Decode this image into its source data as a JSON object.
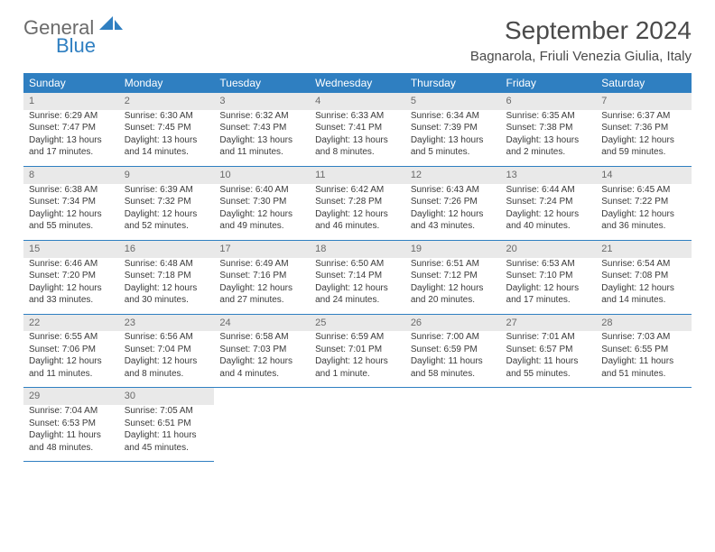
{
  "logo": {
    "text1": "General",
    "text2": "Blue"
  },
  "title": "September 2024",
  "location": "Bagnarola, Friuli Venezia Giulia, Italy",
  "header_bg": "#2f7fc1",
  "daynum_bg": "#e9e9e9",
  "border_color": "#2f7fc1",
  "weekdays": [
    "Sunday",
    "Monday",
    "Tuesday",
    "Wednesday",
    "Thursday",
    "Friday",
    "Saturday"
  ],
  "weeks": [
    [
      {
        "n": "1",
        "sr": "Sunrise: 6:29 AM",
        "ss": "Sunset: 7:47 PM",
        "dl": "Daylight: 13 hours and 17 minutes."
      },
      {
        "n": "2",
        "sr": "Sunrise: 6:30 AM",
        "ss": "Sunset: 7:45 PM",
        "dl": "Daylight: 13 hours and 14 minutes."
      },
      {
        "n": "3",
        "sr": "Sunrise: 6:32 AM",
        "ss": "Sunset: 7:43 PM",
        "dl": "Daylight: 13 hours and 11 minutes."
      },
      {
        "n": "4",
        "sr": "Sunrise: 6:33 AM",
        "ss": "Sunset: 7:41 PM",
        "dl": "Daylight: 13 hours and 8 minutes."
      },
      {
        "n": "5",
        "sr": "Sunrise: 6:34 AM",
        "ss": "Sunset: 7:39 PM",
        "dl": "Daylight: 13 hours and 5 minutes."
      },
      {
        "n": "6",
        "sr": "Sunrise: 6:35 AM",
        "ss": "Sunset: 7:38 PM",
        "dl": "Daylight: 13 hours and 2 minutes."
      },
      {
        "n": "7",
        "sr": "Sunrise: 6:37 AM",
        "ss": "Sunset: 7:36 PM",
        "dl": "Daylight: 12 hours and 59 minutes."
      }
    ],
    [
      {
        "n": "8",
        "sr": "Sunrise: 6:38 AM",
        "ss": "Sunset: 7:34 PM",
        "dl": "Daylight: 12 hours and 55 minutes."
      },
      {
        "n": "9",
        "sr": "Sunrise: 6:39 AM",
        "ss": "Sunset: 7:32 PM",
        "dl": "Daylight: 12 hours and 52 minutes."
      },
      {
        "n": "10",
        "sr": "Sunrise: 6:40 AM",
        "ss": "Sunset: 7:30 PM",
        "dl": "Daylight: 12 hours and 49 minutes."
      },
      {
        "n": "11",
        "sr": "Sunrise: 6:42 AM",
        "ss": "Sunset: 7:28 PM",
        "dl": "Daylight: 12 hours and 46 minutes."
      },
      {
        "n": "12",
        "sr": "Sunrise: 6:43 AM",
        "ss": "Sunset: 7:26 PM",
        "dl": "Daylight: 12 hours and 43 minutes."
      },
      {
        "n": "13",
        "sr": "Sunrise: 6:44 AM",
        "ss": "Sunset: 7:24 PM",
        "dl": "Daylight: 12 hours and 40 minutes."
      },
      {
        "n": "14",
        "sr": "Sunrise: 6:45 AM",
        "ss": "Sunset: 7:22 PM",
        "dl": "Daylight: 12 hours and 36 minutes."
      }
    ],
    [
      {
        "n": "15",
        "sr": "Sunrise: 6:46 AM",
        "ss": "Sunset: 7:20 PM",
        "dl": "Daylight: 12 hours and 33 minutes."
      },
      {
        "n": "16",
        "sr": "Sunrise: 6:48 AM",
        "ss": "Sunset: 7:18 PM",
        "dl": "Daylight: 12 hours and 30 minutes."
      },
      {
        "n": "17",
        "sr": "Sunrise: 6:49 AM",
        "ss": "Sunset: 7:16 PM",
        "dl": "Daylight: 12 hours and 27 minutes."
      },
      {
        "n": "18",
        "sr": "Sunrise: 6:50 AM",
        "ss": "Sunset: 7:14 PM",
        "dl": "Daylight: 12 hours and 24 minutes."
      },
      {
        "n": "19",
        "sr": "Sunrise: 6:51 AM",
        "ss": "Sunset: 7:12 PM",
        "dl": "Daylight: 12 hours and 20 minutes."
      },
      {
        "n": "20",
        "sr": "Sunrise: 6:53 AM",
        "ss": "Sunset: 7:10 PM",
        "dl": "Daylight: 12 hours and 17 minutes."
      },
      {
        "n": "21",
        "sr": "Sunrise: 6:54 AM",
        "ss": "Sunset: 7:08 PM",
        "dl": "Daylight: 12 hours and 14 minutes."
      }
    ],
    [
      {
        "n": "22",
        "sr": "Sunrise: 6:55 AM",
        "ss": "Sunset: 7:06 PM",
        "dl": "Daylight: 12 hours and 11 minutes."
      },
      {
        "n": "23",
        "sr": "Sunrise: 6:56 AM",
        "ss": "Sunset: 7:04 PM",
        "dl": "Daylight: 12 hours and 8 minutes."
      },
      {
        "n": "24",
        "sr": "Sunrise: 6:58 AM",
        "ss": "Sunset: 7:03 PM",
        "dl": "Daylight: 12 hours and 4 minutes."
      },
      {
        "n": "25",
        "sr": "Sunrise: 6:59 AM",
        "ss": "Sunset: 7:01 PM",
        "dl": "Daylight: 12 hours and 1 minute."
      },
      {
        "n": "26",
        "sr": "Sunrise: 7:00 AM",
        "ss": "Sunset: 6:59 PM",
        "dl": "Daylight: 11 hours and 58 minutes."
      },
      {
        "n": "27",
        "sr": "Sunrise: 7:01 AM",
        "ss": "Sunset: 6:57 PM",
        "dl": "Daylight: 11 hours and 55 minutes."
      },
      {
        "n": "28",
        "sr": "Sunrise: 7:03 AM",
        "ss": "Sunset: 6:55 PM",
        "dl": "Daylight: 11 hours and 51 minutes."
      }
    ],
    [
      {
        "n": "29",
        "sr": "Sunrise: 7:04 AM",
        "ss": "Sunset: 6:53 PM",
        "dl": "Daylight: 11 hours and 48 minutes."
      },
      {
        "n": "30",
        "sr": "Sunrise: 7:05 AM",
        "ss": "Sunset: 6:51 PM",
        "dl": "Daylight: 11 hours and 45 minutes."
      },
      null,
      null,
      null,
      null,
      null
    ]
  ]
}
